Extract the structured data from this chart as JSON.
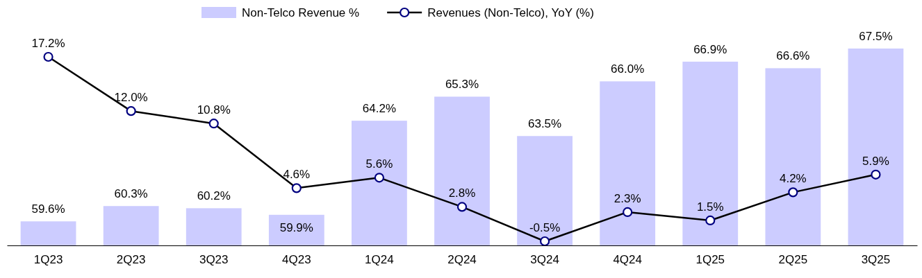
{
  "chart_data": {
    "type": "bar",
    "categories": [
      "1Q23",
      "2Q23",
      "3Q23",
      "4Q23",
      "1Q24",
      "2Q24",
      "3Q24",
      "4Q24",
      "1Q25",
      "2Q25",
      "3Q25"
    ],
    "series": [
      {
        "name": "Non-Telco Revenue %",
        "color": "#ccccff",
        "values": [
          59.6,
          60.3,
          60.2,
          59.9,
          64.2,
          65.3,
          63.5,
          66.0,
          66.9,
          66.6,
          67.5
        ],
        "value_labels": [
          "59.6%",
          "60.3%",
          "60.2%",
          "59.9%",
          "64.2%",
          "65.3%",
          "63.5%",
          "66.0%",
          "66.9%",
          "66.6%",
          "67.5%"
        ]
      },
      {
        "name": "Revenues (Non-Telco), YoY (%)",
        "type": "line",
        "axis": "y2",
        "color": "#000000",
        "values": [
          17.2,
          12.0,
          10.8,
          4.6,
          5.6,
          2.8,
          -0.5,
          2.3,
          1.5,
          4.2,
          5.9
        ],
        "value_labels": [
          "17.2%",
          "12.0%",
          "10.8%",
          "4.6%",
          "5.6%",
          "2.8%",
          "-0.5%",
          "2.3%",
          "1.5%",
          "4.2%",
          "5.9%"
        ]
      }
    ],
    "ylim": [
      58.5,
      67.5
    ],
    "tick_labels": "x",
    "legend": "top",
    "marker": "circle",
    "line_style": "solid",
    "grid": false
  }
}
